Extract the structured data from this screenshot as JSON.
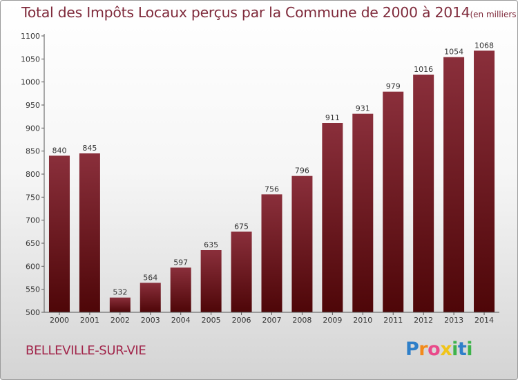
{
  "title": {
    "main": "Total des Impôts Locaux perçus par la Commune de 2000 à 2014",
    "unit": "(en milliers d'€)"
  },
  "commune": "BELLEVILLE-SUR-VIE",
  "brand": {
    "letters": [
      "P",
      "r",
      "o",
      "x",
      "i",
      "t",
      "i"
    ],
    "colors": [
      "#2e7fc9",
      "#f28a1a",
      "#e94a8a",
      "#f0c419",
      "#3db34a",
      "#2e7fc9",
      "#3db34a"
    ]
  },
  "colors": {
    "bar_top": "#8a2f3b",
    "bar_bottom": "#4e0608",
    "title": "#7f2a3b",
    "commune": "#a1254a"
  },
  "chart_data": {
    "type": "bar",
    "title": "Total des Impôts Locaux perçus par la Commune de 2000 à 2014",
    "categories": [
      "2000",
      "2001",
      "2002",
      "2003",
      "2004",
      "2005",
      "2006",
      "2007",
      "2008",
      "2009",
      "2010",
      "2011",
      "2012",
      "2013",
      "2014"
    ],
    "values": [
      840,
      845,
      532,
      564,
      597,
      635,
      675,
      756,
      796,
      911,
      931,
      979,
      1016,
      1054,
      1068
    ],
    "value_labels": [
      "840",
      "845",
      "532",
      "564",
      "597",
      "635",
      "675",
      "756",
      "796",
      "911",
      "931",
      "979",
      "1016",
      "1054",
      "1068"
    ],
    "yticks": [
      "500",
      "550",
      "600",
      "650",
      "700",
      "750",
      "800",
      "850",
      "900",
      "950",
      "1000",
      "1050",
      "1100"
    ],
    "ylim": [
      500,
      1100
    ],
    "xlabel": "",
    "ylabel": "",
    "grid": false
  }
}
